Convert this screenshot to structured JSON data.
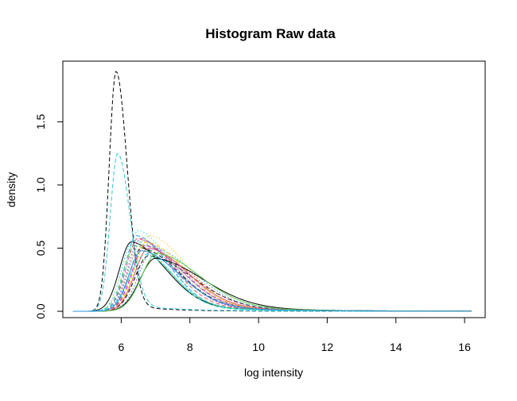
{
  "chart_data": {
    "type": "line",
    "title": "Histogram Raw data",
    "xlabel": "log intensity",
    "ylabel": "density",
    "xlim": [
      4.3,
      16.6
    ],
    "ylim": [
      -0.05,
      1.98
    ],
    "xticks": [
      "6",
      "8",
      "10",
      "12",
      "14",
      "16"
    ],
    "yticks": [
      "0.0",
      "0.5",
      "1.0",
      "1.5"
    ],
    "grid": false,
    "legend": "none",
    "series": [
      {
        "color": "#000000",
        "dash": "dashed",
        "peak_x": 5.85,
        "peak_y": 1.9,
        "sd_left": 0.2,
        "sd_right": 0.32,
        "tail_weight": 0.03,
        "tail_decay": 1.2
      },
      {
        "color": "#2ec4d6",
        "dash": "dashed",
        "peak_x": 5.9,
        "peak_y": 1.25,
        "sd_left": 0.22,
        "sd_right": 0.35,
        "tail_weight": 0.05,
        "tail_decay": 1.4
      },
      {
        "color": "#000000",
        "dash": "solid",
        "peak_x": 6.3,
        "peak_y": 0.55,
        "sd_left": 0.35,
        "sd_right": 1.0,
        "tail_weight": 0.15,
        "tail_decay": 2.0
      },
      {
        "color": "#000000",
        "dash": "dashed",
        "peak_x": 6.6,
        "peak_y": 0.5,
        "sd_left": 0.35,
        "sd_right": 1.1,
        "tail_weight": 0.15,
        "tail_decay": 2.1
      },
      {
        "color": "#000000",
        "dash": "dashed",
        "peak_x": 6.8,
        "peak_y": 0.44,
        "sd_left": 0.4,
        "sd_right": 1.3,
        "tail_weight": 0.15,
        "tail_decay": 2.2
      },
      {
        "color": "#df536b",
        "dash": "dashed",
        "peak_x": 6.5,
        "peak_y": 0.58,
        "sd_left": 0.35,
        "sd_right": 1.0,
        "tail_weight": 0.14,
        "tail_decay": 2.0
      },
      {
        "color": "#61d04f",
        "dash": "dotted",
        "peak_x": 6.6,
        "peak_y": 0.55,
        "sd_left": 0.38,
        "sd_right": 1.05,
        "tail_weight": 0.14,
        "tail_decay": 2.0
      },
      {
        "color": "#2297e6",
        "dash": "dashed",
        "peak_x": 6.45,
        "peak_y": 0.6,
        "sd_left": 0.33,
        "sd_right": 0.95,
        "tail_weight": 0.13,
        "tail_decay": 1.9
      },
      {
        "color": "#28e2e5",
        "dash": "dotted",
        "peak_x": 6.5,
        "peak_y": 0.64,
        "sd_left": 0.32,
        "sd_right": 0.9,
        "tail_weight": 0.12,
        "tail_decay": 1.9
      },
      {
        "color": "#cd0bbc",
        "dash": "dashed",
        "peak_x": 6.7,
        "peak_y": 0.52,
        "sd_left": 0.38,
        "sd_right": 1.1,
        "tail_weight": 0.15,
        "tail_decay": 2.0
      },
      {
        "color": "#f5c710",
        "dash": "dotted",
        "peak_x": 6.85,
        "peak_y": 0.6,
        "sd_left": 0.42,
        "sd_right": 1.05,
        "tail_weight": 0.14,
        "tail_decay": 2.0
      },
      {
        "color": "#9e9e9e",
        "dash": "dotted",
        "peak_x": 6.6,
        "peak_y": 0.56,
        "sd_left": 0.36,
        "sd_right": 1.15,
        "tail_weight": 0.16,
        "tail_decay": 2.2
      },
      {
        "color": "#df536b",
        "dash": "dotted",
        "peak_x": 6.9,
        "peak_y": 0.47,
        "sd_left": 0.4,
        "sd_right": 1.2,
        "tail_weight": 0.15,
        "tail_decay": 2.1
      },
      {
        "color": "#61d04f",
        "dash": "dashed",
        "peak_x": 6.4,
        "peak_y": 0.52,
        "sd_left": 0.34,
        "sd_right": 1.0,
        "tail_weight": 0.14,
        "tail_decay": 2.0
      },
      {
        "color": "#2297e6",
        "dash": "dotted",
        "peak_x": 6.95,
        "peak_y": 0.5,
        "sd_left": 0.42,
        "sd_right": 1.2,
        "tail_weight": 0.15,
        "tail_decay": 2.1
      },
      {
        "color": "#cd0bbc",
        "dash": "dotted",
        "peak_x": 6.55,
        "peak_y": 0.57,
        "sd_left": 0.35,
        "sd_right": 1.05,
        "tail_weight": 0.14,
        "tail_decay": 2.0
      },
      {
        "color": "#f5c710",
        "dash": "dashed",
        "peak_x": 6.75,
        "peak_y": 0.55,
        "sd_left": 0.38,
        "sd_right": 1.1,
        "tail_weight": 0.15,
        "tail_decay": 2.0
      },
      {
        "color": "#28e2e5",
        "dash": "dashed",
        "peak_x": 6.7,
        "peak_y": 0.45,
        "sd_left": 0.45,
        "sd_right": 0.85,
        "tail_weight": 0.12,
        "tail_decay": 1.9
      },
      {
        "color": "#000000",
        "dash": "solid",
        "peak_x": 7.0,
        "peak_y": 0.42,
        "sd_left": 0.45,
        "sd_right": 1.4,
        "tail_weight": 0.17,
        "tail_decay": 2.3
      },
      {
        "color": "#9e9e9e",
        "dash": "dashed",
        "peak_x": 6.65,
        "peak_y": 0.53,
        "sd_left": 0.37,
        "sd_right": 1.1,
        "tail_weight": 0.15,
        "tail_decay": 2.1
      },
      {
        "color": "#2ec4d6",
        "dash": "dotted",
        "peak_x": 6.35,
        "peak_y": 0.56,
        "sd_left": 0.33,
        "sd_right": 1.0,
        "tail_weight": 0.14,
        "tail_decay": 2.0
      },
      {
        "color": "#df536b",
        "dash": "solid",
        "peak_x": 6.8,
        "peak_y": 0.5,
        "sd_left": 0.4,
        "sd_right": 1.15,
        "tail_weight": 0.15,
        "tail_decay": 2.1
      },
      {
        "color": "#61d04f",
        "dash": "solid",
        "peak_x": 7.05,
        "peak_y": 0.46,
        "sd_left": 0.45,
        "sd_right": 1.25,
        "tail_weight": 0.16,
        "tail_decay": 2.2
      },
      {
        "color": "#2297e6",
        "dash": "solid",
        "peak_x": 6.6,
        "peak_y": 0.48,
        "sd_left": 0.37,
        "sd_right": 1.1,
        "tail_weight": 0.15,
        "tail_decay": 2.1
      }
    ]
  }
}
